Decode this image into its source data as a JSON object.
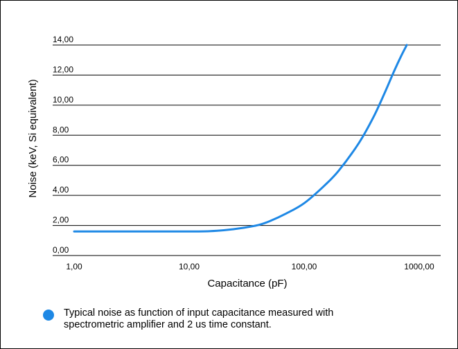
{
  "colors": {
    "series": "#1e88e5",
    "grid": "#000000",
    "text": "#000000",
    "background": "#ffffff"
  },
  "chart_data": {
    "type": "line",
    "x_scale": "log",
    "xlabel": "Capacitance (pF)",
    "ylabel": "Noise (keV, Si equivalent)",
    "xlim": [
      1,
      1000
    ],
    "ylim": [
      0,
      14
    ],
    "x_ticks": [
      "1,00",
      "10,00",
      "100,00",
      "1000,00"
    ],
    "x_tick_values": [
      1,
      10,
      100,
      1000
    ],
    "y_ticks": [
      "0,00",
      "2,00",
      "4,00",
      "6,00",
      "8,00",
      "10,00",
      "12,00",
      "14,00"
    ],
    "y_tick_values": [
      0,
      2,
      4,
      6,
      8,
      10,
      12,
      14
    ],
    "grid": "horizontal",
    "legend_position": "bottom",
    "series": [
      {
        "name": "Typical noise as function of input  capacitance measured with spectrometric amplifier and 2 us time constant.",
        "x": [
          1,
          2,
          5,
          10,
          15,
          20,
          30,
          40,
          50,
          70,
          100,
          150,
          200,
          300,
          400,
          500,
          600,
          700,
          780
        ],
        "y": [
          1.6,
          1.6,
          1.6,
          1.6,
          1.62,
          1.68,
          1.85,
          2.03,
          2.28,
          2.8,
          3.48,
          4.65,
          5.65,
          7.5,
          9.2,
          10.8,
          12.2,
          13.3,
          14.0
        ]
      }
    ]
  },
  "legend": {
    "text_line1": "Typical noise as function of input  capacitance measured with",
    "text_line2": "spectrometric amplifier and 2 us time constant."
  }
}
